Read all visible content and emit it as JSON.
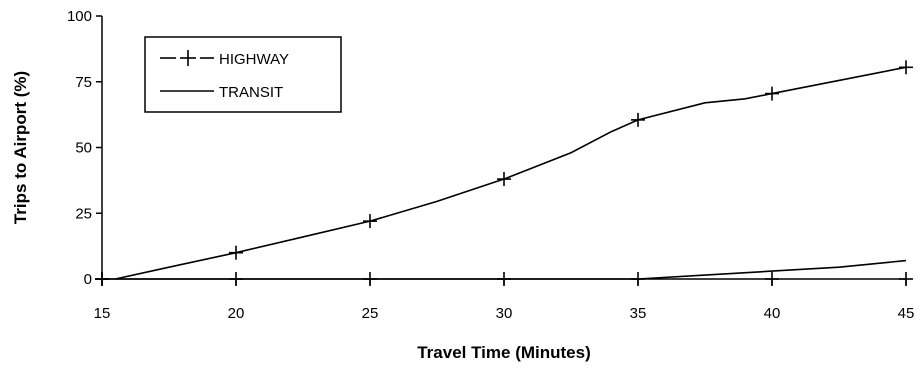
{
  "chart_data": {
    "type": "line",
    "title": "",
    "xlabel": "Travel Time (Minutes)",
    "ylabel": "Trips to Airport (%)",
    "xlim": [
      15,
      45
    ],
    "ylim": [
      0,
      100
    ],
    "x_ticks": [
      "15",
      "20",
      "25",
      "30",
      "35",
      "40",
      "45"
    ],
    "y_ticks": [
      "0",
      "25",
      "50",
      "75",
      "100"
    ],
    "grid": false,
    "legend_position": "top-left",
    "series": [
      {
        "name": "HIGHWAY",
        "line_style": "solid",
        "marker": "plus",
        "points": [
          [
            15.5,
            0
          ],
          [
            17.5,
            4.5
          ],
          [
            20,
            10
          ],
          [
            22.5,
            16
          ],
          [
            25,
            22
          ],
          [
            27.5,
            29.5
          ],
          [
            30,
            38
          ],
          [
            32.5,
            48
          ],
          [
            34,
            56
          ],
          [
            35,
            60.5
          ],
          [
            37.5,
            67
          ],
          [
            39,
            68.5
          ],
          [
            40,
            70.5
          ],
          [
            42.5,
            75.5
          ],
          [
            45,
            80.5
          ]
        ],
        "marker_points": [
          [
            15,
            0
          ],
          [
            20,
            10
          ],
          [
            25,
            22
          ],
          [
            30,
            38
          ],
          [
            35,
            60.5
          ],
          [
            40,
            70.5
          ],
          [
            45,
            80.5
          ]
        ]
      },
      {
        "name": "TRANSIT",
        "line_style": "solid",
        "marker": "none",
        "points": [
          [
            15,
            0
          ],
          [
            20,
            0
          ],
          [
            25,
            0
          ],
          [
            30,
            0
          ],
          [
            35,
            0
          ],
          [
            37.5,
            1.5
          ],
          [
            40,
            3
          ],
          [
            42.5,
            4.5
          ],
          [
            45,
            7
          ]
        ],
        "zero_markers": [
          [
            15,
            0
          ],
          [
            20,
            0
          ],
          [
            25,
            0
          ],
          [
            30,
            0
          ],
          [
            35,
            0
          ],
          [
            40,
            0
          ],
          [
            45,
            0
          ]
        ]
      }
    ],
    "colors": {
      "line": "#000000",
      "axis": "#000000"
    }
  }
}
